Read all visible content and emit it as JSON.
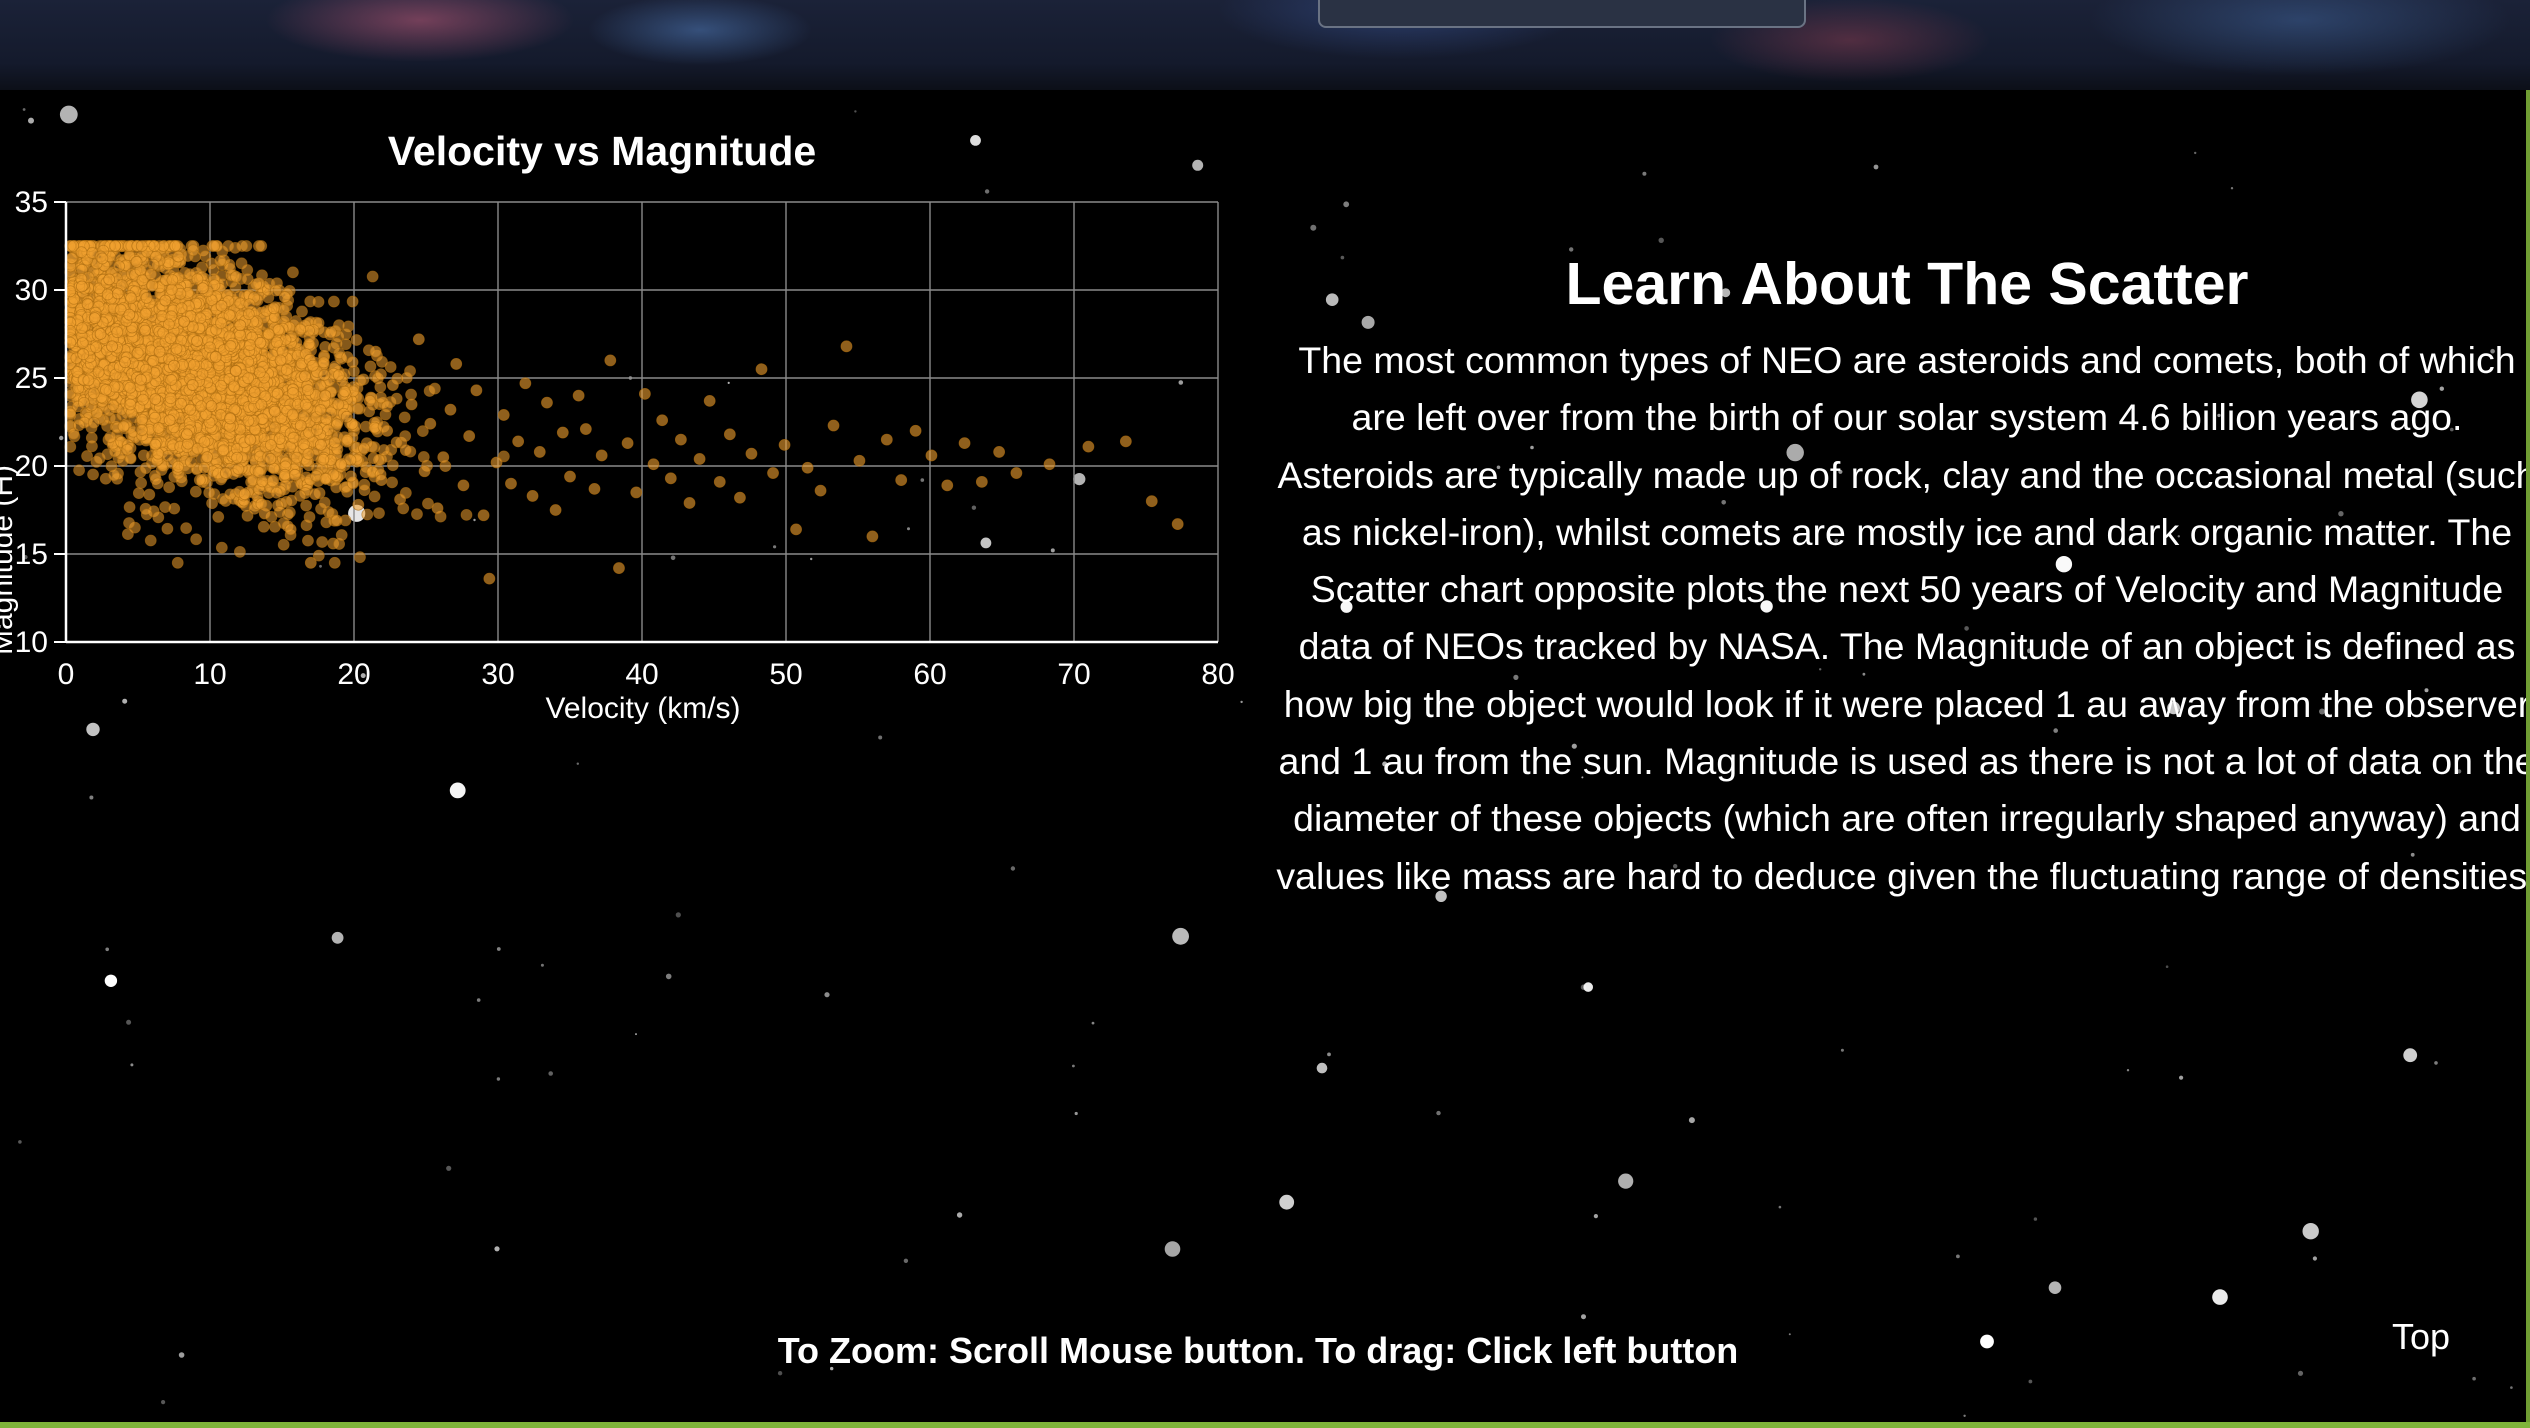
{
  "page": {
    "zoom_hint": "To Zoom: Scroll Mouse button. To drag: Click left button",
    "top_link": "Top"
  },
  "info": {
    "title": "Learn About The Scatter",
    "body": "The most common types of NEO are asteroids and comets, both of which are left over from the birth of our solar system 4.6 billion years ago. Asteroids are typically made up of rock, clay and the occasional metal (such as nickel-iron), whilst comets are mostly ice and dark organic matter. The Scatter chart opposite plots the next 50 years of Velocity and Magnitude data of NEOs tracked by NASA. The Magnitude of an object is defined as how big the object would look if it were placed 1 au away from the observer and 1 au from the sun. Magnitude is used as there is not a lot of data on the diameter of these objects (which are often irregularly shaped anyway) and values like mass are hard to deduce given the fluctuating range of densities."
  },
  "chart_data": {
    "type": "scatter",
    "title": "Velocity vs Magnitude",
    "xlabel": "Velocity (km/s)",
    "ylabel": "Magnitude (H)",
    "xlim": [
      0,
      80
    ],
    "ylim": [
      10,
      35
    ],
    "xticks": [
      "0",
      "10",
      "20",
      "30",
      "40",
      "50",
      "60",
      "70",
      "80"
    ],
    "yticks": [
      "10",
      "15",
      "20",
      "25",
      "30",
      "35"
    ],
    "grid": true,
    "point_color": "#f0a030",
    "points": [
      [
        0.4,
        31.8
      ],
      [
        1.1,
        30.2
      ],
      [
        1.5,
        29.2
      ],
      [
        2.0,
        28.4
      ],
      [
        2.4,
        27.5
      ],
      [
        3.0,
        30.6
      ],
      [
        3.2,
        26.8
      ],
      [
        3.6,
        29.8
      ],
      [
        4.1,
        25.9
      ],
      [
        4.4,
        28.6
      ],
      [
        4.9,
        31.6
      ],
      [
        5.2,
        24.9
      ],
      [
        5.5,
        27.7
      ],
      [
        5.9,
        30.9
      ],
      [
        6.2,
        23.8
      ],
      [
        6.5,
        26.5
      ],
      [
        6.9,
        29.4
      ],
      [
        7.2,
        22.6
      ],
      [
        7.5,
        25.7
      ],
      [
        7.8,
        31.9
      ],
      [
        8.2,
        28.2
      ],
      [
        8.4,
        21.8
      ],
      [
        8.8,
        24.6
      ],
      [
        9.1,
        27.1
      ],
      [
        9.5,
        30.1
      ],
      [
        9.8,
        20.5
      ],
      [
        10.1,
        23.4
      ],
      [
        10.4,
        26.2
      ],
      [
        10.8,
        29.1
      ],
      [
        11.1,
        19.6
      ],
      [
        11.4,
        22.7
      ],
      [
        11.8,
        25.4
      ],
      [
        12.1,
        28.0
      ],
      [
        12.4,
        18.4
      ],
      [
        12.8,
        21.5
      ],
      [
        13.1,
        24.2
      ],
      [
        13.5,
        27.0
      ],
      [
        13.8,
        17.3
      ],
      [
        14.2,
        20.4
      ],
      [
        14.5,
        23.1
      ],
      [
        14.9,
        26.0
      ],
      [
        15.2,
        29.6
      ],
      [
        15.6,
        16.4
      ],
      [
        15.9,
        19.5
      ],
      [
        16.3,
        22.3
      ],
      [
        16.6,
        25.1
      ],
      [
        17.0,
        14.5
      ],
      [
        17.3,
        18.4
      ],
      [
        17.7,
        21.2
      ],
      [
        18.0,
        24.0
      ],
      [
        18.4,
        27.6
      ],
      [
        18.8,
        16.9
      ],
      [
        19.1,
        20.1
      ],
      [
        19.5,
        22.8
      ],
      [
        19.9,
        25.9
      ],
      [
        20.3,
        17.8
      ],
      [
        20.7,
        21.0
      ],
      [
        21.1,
        23.7
      ],
      [
        21.5,
        26.5
      ],
      [
        21.9,
        19.2
      ],
      [
        22.3,
        22.0
      ],
      [
        22.7,
        24.6
      ],
      [
        23.2,
        18.1
      ],
      [
        23.6,
        20.9
      ],
      [
        24.0,
        23.5
      ],
      [
        24.5,
        27.2
      ],
      [
        24.9,
        19.7
      ],
      [
        25.3,
        22.4
      ],
      [
        25.8,
        17.6
      ],
      [
        26.2,
        20.5
      ],
      [
        26.7,
        23.2
      ],
      [
        27.1,
        25.8
      ],
      [
        27.6,
        18.9
      ],
      [
        28.0,
        21.7
      ],
      [
        28.5,
        24.3
      ],
      [
        29.0,
        17.2
      ],
      [
        29.4,
        13.6
      ],
      [
        29.9,
        20.2
      ],
      [
        30.4,
        22.9
      ],
      [
        30.9,
        19.0
      ],
      [
        31.4,
        21.4
      ],
      [
        31.9,
        24.7
      ],
      [
        32.4,
        18.3
      ],
      [
        32.9,
        20.8
      ],
      [
        33.4,
        23.6
      ],
      [
        34.0,
        17.5
      ],
      [
        34.5,
        21.9
      ],
      [
        35.0,
        19.4
      ],
      [
        35.6,
        24.0
      ],
      [
        36.1,
        22.1
      ],
      [
        36.7,
        18.7
      ],
      [
        37.2,
        20.6
      ],
      [
        37.8,
        26.0
      ],
      [
        38.4,
        14.2
      ],
      [
        39.0,
        21.3
      ],
      [
        39.6,
        18.5
      ],
      [
        40.2,
        24.1
      ],
      [
        40.8,
        20.1
      ],
      [
        41.4,
        22.6
      ],
      [
        42.0,
        19.3
      ],
      [
        42.7,
        21.5
      ],
      [
        43.3,
        17.9
      ],
      [
        44.0,
        20.4
      ],
      [
        44.7,
        23.7
      ],
      [
        45.4,
        19.1
      ],
      [
        46.1,
        21.8
      ],
      [
        46.8,
        18.2
      ],
      [
        47.6,
        20.7
      ],
      [
        48.3,
        25.5
      ],
      [
        49.1,
        19.6
      ],
      [
        49.9,
        21.2
      ],
      [
        50.7,
        16.4
      ],
      [
        51.5,
        19.9
      ],
      [
        52.4,
        18.6
      ],
      [
        53.3,
        22.3
      ],
      [
        54.2,
        26.8
      ],
      [
        55.1,
        20.3
      ],
      [
        56.0,
        16.0
      ],
      [
        57.0,
        21.5
      ],
      [
        58.0,
        19.2
      ],
      [
        59.0,
        22.0
      ],
      [
        60.1,
        20.6
      ],
      [
        61.2,
        18.9
      ],
      [
        62.4,
        21.3
      ],
      [
        63.6,
        19.1
      ],
      [
        64.8,
        20.8
      ],
      [
        66.0,
        19.6
      ],
      [
        68.3,
        20.1
      ],
      [
        71.0,
        21.1
      ],
      [
        73.6,
        21.4
      ],
      [
        75.4,
        18.0
      ],
      [
        77.2,
        16.7
      ]
    ]
  }
}
